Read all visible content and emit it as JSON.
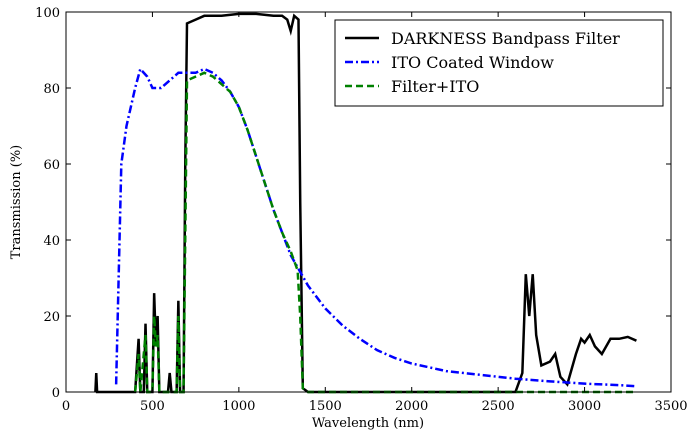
{
  "chart_data": {
    "type": "line",
    "xlabel": "Wavelength (nm)",
    "ylabel": "Transmission (%)",
    "xlim": [
      0,
      3500
    ],
    "ylim": [
      0,
      100
    ],
    "xticks": [
      0,
      500,
      1000,
      1500,
      2000,
      2500,
      3000,
      3500
    ],
    "yticks": [
      0,
      20,
      40,
      60,
      80,
      100
    ],
    "legend": "upper-right",
    "series": [
      {
        "name": "DARKNESS Bandpass Filter",
        "color": "#000000",
        "linestyle": "solid",
        "x": [
          170,
          175,
          180,
          400,
          420,
          430,
          450,
          460,
          470,
          500,
          510,
          520,
          530,
          540,
          590,
          600,
          610,
          640,
          650,
          660,
          680,
          690,
          700,
          750,
          800,
          900,
          1000,
          1100,
          1200,
          1250,
          1280,
          1300,
          1320,
          1345,
          1355,
          1370,
          1400,
          2600,
          2640,
          2660,
          2680,
          2700,
          2720,
          2750,
          2800,
          2830,
          2860,
          2900,
          2950,
          2980,
          3000,
          3030,
          3060,
          3100,
          3150,
          3200,
          3250,
          3300
        ],
        "values": [
          0,
          5,
          0,
          0,
          14,
          0,
          0,
          18,
          0,
          0,
          26,
          12,
          20,
          0,
          0,
          5,
          0,
          0,
          24,
          0,
          0,
          60,
          97,
          98,
          99,
          99,
          99.5,
          99.5,
          99,
          99,
          98,
          95,
          99,
          98,
          50,
          1,
          0,
          0,
          5,
          31,
          20,
          31,
          15,
          7,
          8,
          10,
          4,
          2,
          10,
          14,
          13,
          15,
          12,
          10,
          14,
          14,
          14.5,
          13.5
        ]
      },
      {
        "name": "ITO Coated Window",
        "color": "#0000ff",
        "linestyle": "dashdot",
        "x": [
          290,
          320,
          350,
          400,
          430,
          470,
          500,
          550,
          600,
          650,
          700,
          750,
          800,
          850,
          900,
          950,
          1000,
          1050,
          1100,
          1150,
          1200,
          1250,
          1300,
          1350,
          1400,
          1500,
          1600,
          1700,
          1800,
          1900,
          2000,
          2200,
          2400,
          2600,
          2800,
          3000,
          3200,
          3300
        ],
        "values": [
          2,
          60,
          70,
          80,
          85,
          83,
          80,
          80,
          82,
          84,
          84,
          84,
          85,
          84,
          82,
          79,
          75,
          69,
          62,
          55,
          48,
          42,
          36,
          32,
          28,
          22,
          17.5,
          14,
          11,
          9,
          7.5,
          5.5,
          4.5,
          3.5,
          2.8,
          2.2,
          1.8,
          1.5
        ]
      },
      {
        "name": "Filter+ITO",
        "color": "#008000",
        "linestyle": "dashed",
        "x": [
          400,
          420,
          430,
          460,
          470,
          500,
          510,
          520,
          530,
          540,
          640,
          650,
          660,
          680,
          700,
          750,
          800,
          850,
          900,
          950,
          1000,
          1050,
          1100,
          1150,
          1200,
          1250,
          1300,
          1340,
          1355,
          1370,
          1400,
          3300
        ],
        "values": [
          0,
          10,
          0,
          15,
          0,
          0,
          20,
          12,
          15,
          0,
          0,
          20,
          0,
          0,
          82,
          83,
          84,
          83,
          81,
          79,
          75,
          69,
          62,
          55,
          48,
          42,
          37,
          32,
          20,
          1,
          0,
          0
        ]
      }
    ]
  }
}
